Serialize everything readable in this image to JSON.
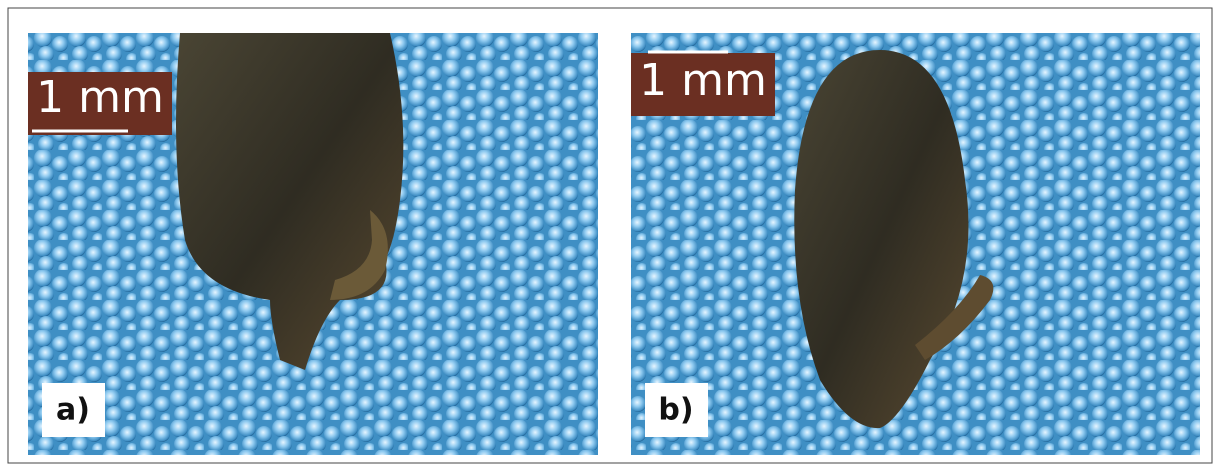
{
  "panels": [
    {
      "scale_bar": "1 mm",
      "label": "a)"
    },
    {
      "scale_bar": "1 mm",
      "label": "b)"
    }
  ]
}
